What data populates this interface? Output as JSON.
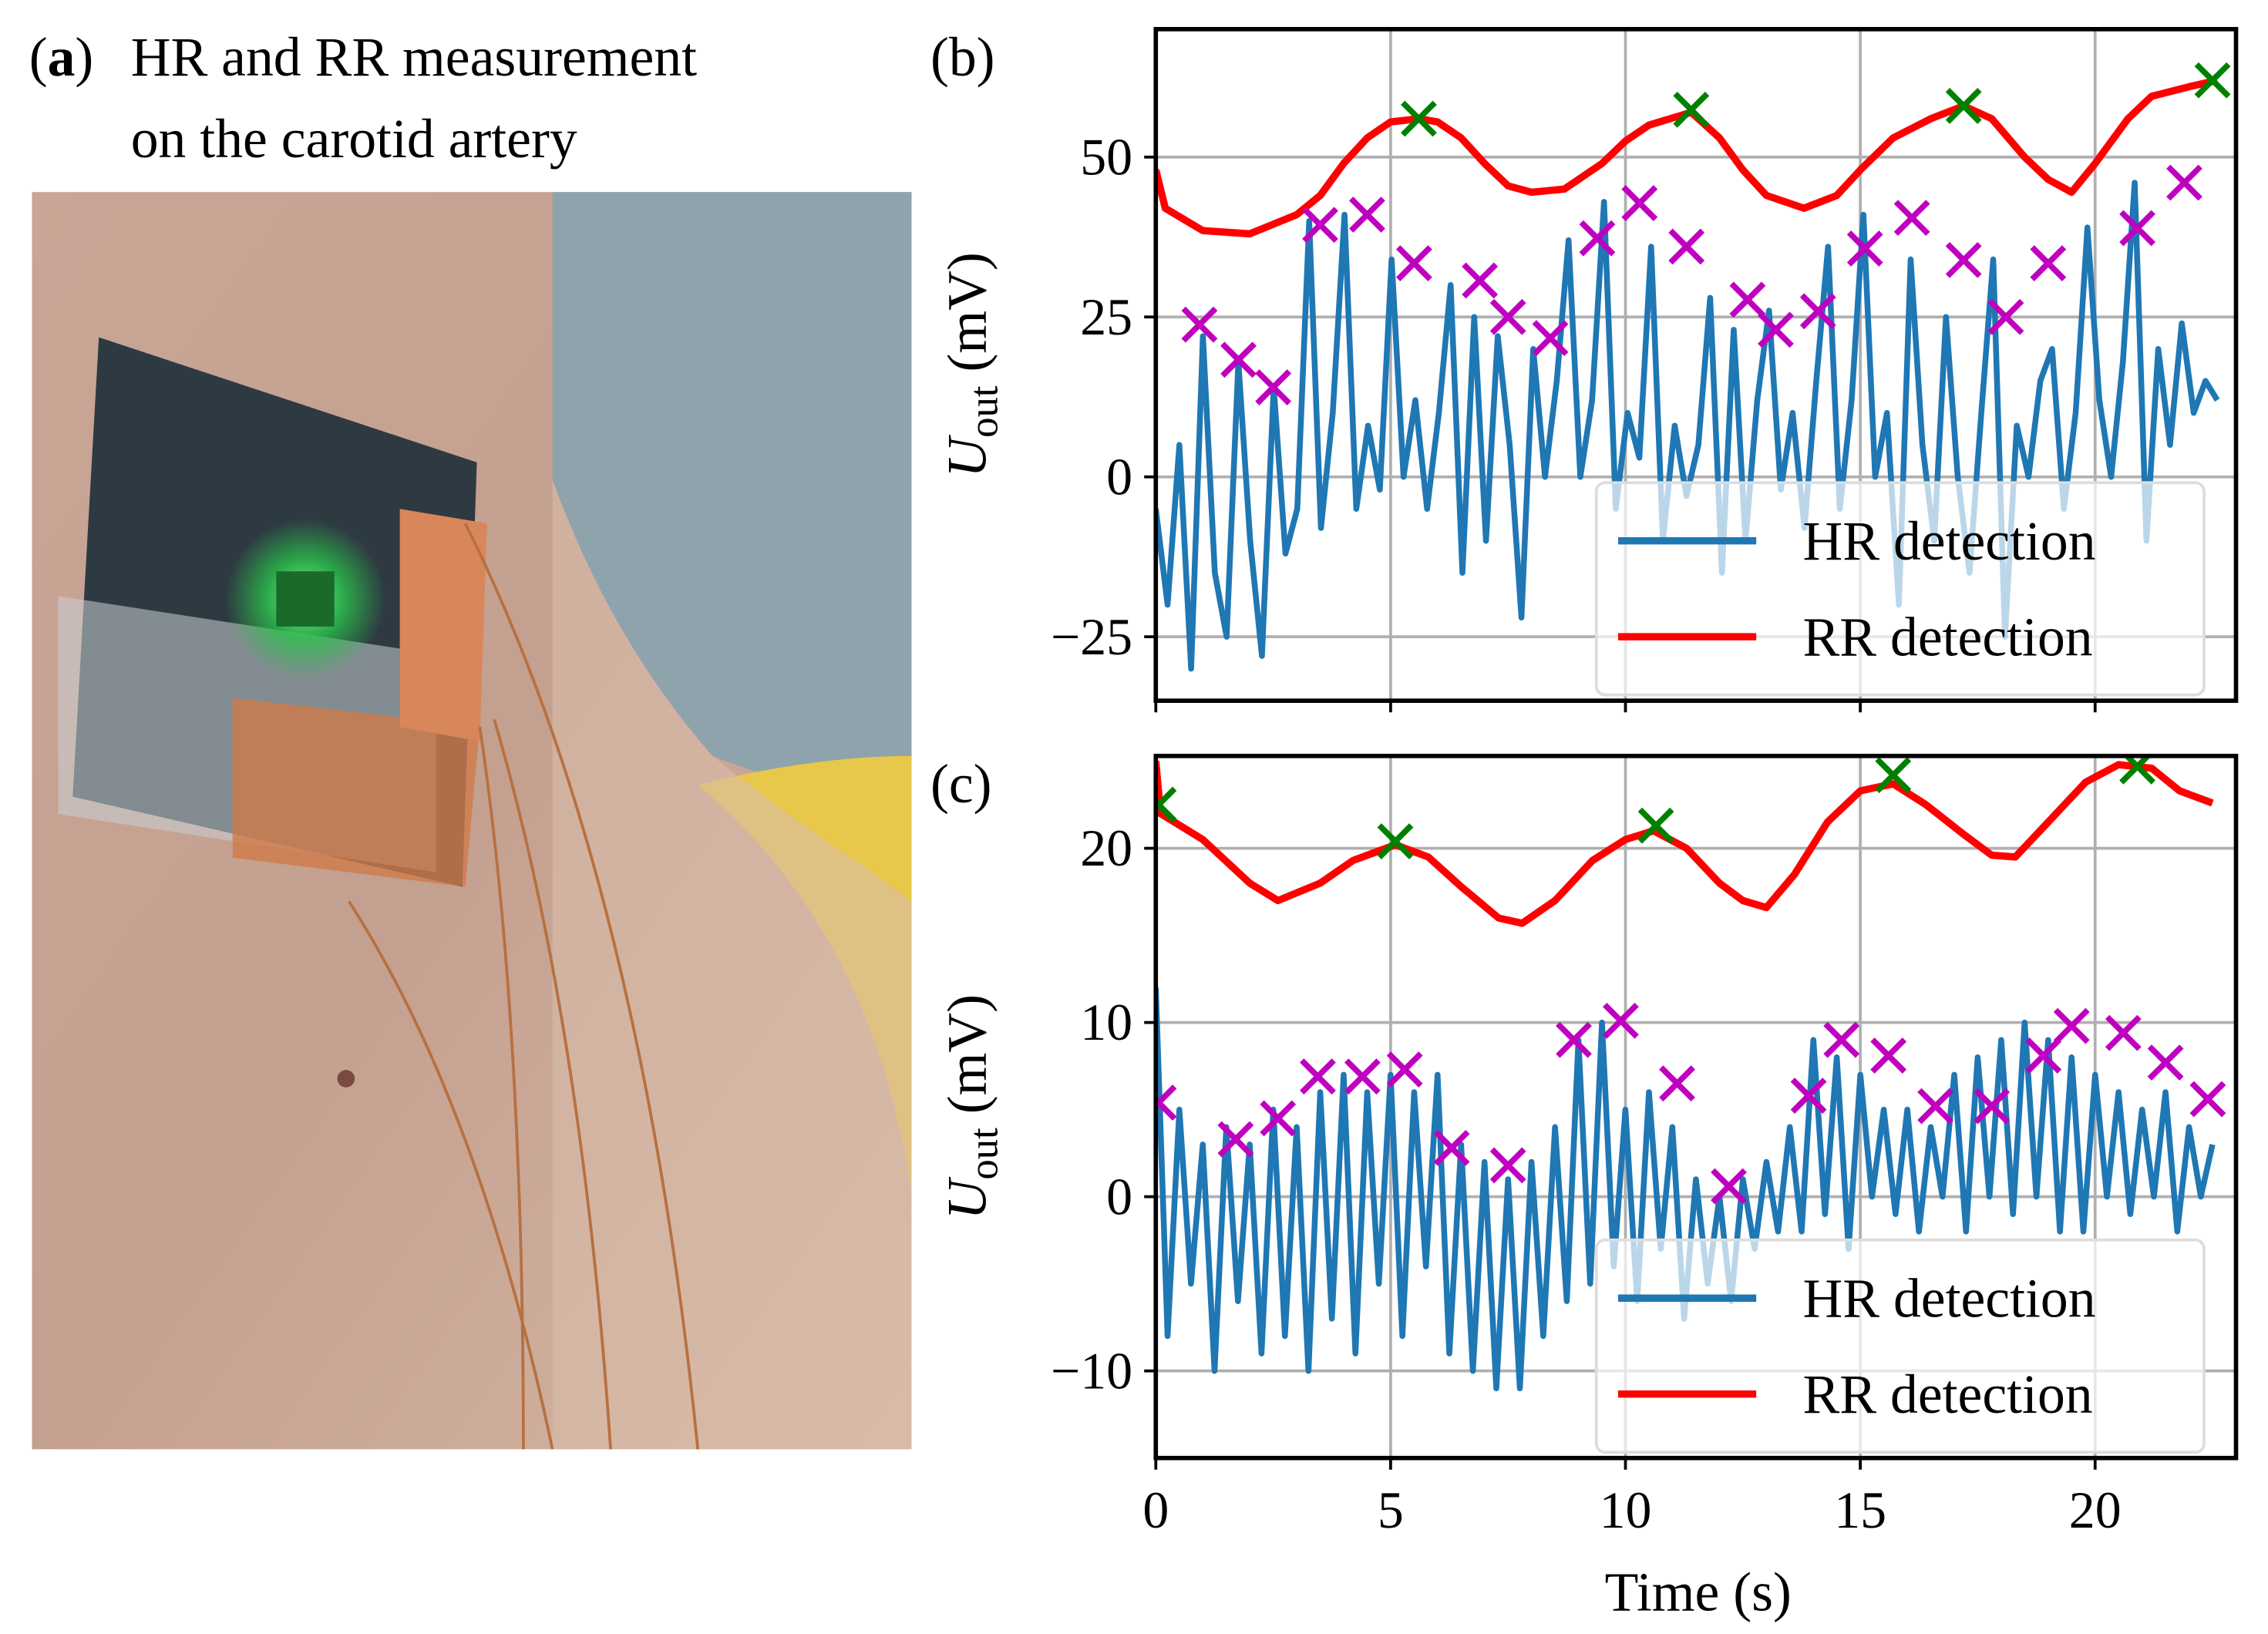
{
  "panel_a": {
    "label_letter": "a",
    "label_open": "(",
    "label_close": ")",
    "title_line1": "HR and RR measurement",
    "title_line2": "on the carotid artery"
  },
  "colors": {
    "hr": "#1f77b4",
    "rr": "#ff0000",
    "hr_peaks": "#bf00bf",
    "rr_peaks": "#008000",
    "grid": "#b0b0b0"
  },
  "shared_xlabel": "Time (s)",
  "chart_data": [
    {
      "panel": "(b)",
      "type": "line",
      "ylabel_symbol": "U",
      "ylabel_sub": "out",
      "ylabel_unit": " (mV)",
      "xlim": [
        0,
        23
      ],
      "ylim": [
        -35,
        70
      ],
      "xticks": [
        0,
        5,
        10,
        15,
        20
      ],
      "yticks": [
        -25,
        0,
        25,
        50
      ],
      "ytick_labels": [
        "−25",
        "0",
        "25",
        "50"
      ],
      "grid": true,
      "legend": {
        "placement": "lower-right",
        "entries": [
          "HR detection",
          "RR detection"
        ]
      },
      "hr_signal": [
        -5,
        -20,
        5,
        -30,
        22,
        -15,
        -25,
        18,
        -10,
        -28,
        14,
        -12,
        -5,
        40,
        -8,
        10,
        41,
        -5,
        8,
        -2,
        34,
        0,
        12,
        -5,
        10,
        30,
        -15,
        25,
        -10,
        22,
        5,
        -22,
        20,
        0,
        15,
        37,
        0,
        12,
        43,
        -5,
        10,
        3,
        36,
        -10,
        8,
        -3,
        5,
        28,
        -15,
        23,
        -10,
        12,
        26,
        -2,
        10,
        -8,
        15,
        36,
        -5,
        12,
        41,
        0,
        10,
        -20,
        34,
        5,
        -10,
        25,
        0,
        -15,
        10,
        34,
        -25,
        8,
        0,
        15,
        20,
        -5,
        10,
        39,
        12,
        0,
        18,
        46,
        -10,
        20,
        5,
        24,
        10,
        15,
        12
      ],
      "rr_signal": [
        [
          0,
          48
        ],
        [
          0.2,
          42
        ],
        [
          1,
          38.5
        ],
        [
          2,
          38
        ],
        [
          2.5,
          39.5
        ],
        [
          3,
          41
        ],
        [
          3.5,
          44
        ],
        [
          4,
          49
        ],
        [
          4.5,
          53
        ],
        [
          5,
          55.5
        ],
        [
          5.6,
          56
        ],
        [
          6,
          55.5
        ],
        [
          6.5,
          53
        ],
        [
          7,
          49
        ],
        [
          7.5,
          45.5
        ],
        [
          8,
          44.5
        ],
        [
          8.7,
          45
        ],
        [
          9.5,
          49
        ],
        [
          10,
          52.5
        ],
        [
          10.5,
          55
        ],
        [
          11.4,
          57
        ],
        [
          12,
          53
        ],
        [
          12.5,
          48
        ],
        [
          13,
          44
        ],
        [
          13.8,
          42
        ],
        [
          14.5,
          44
        ],
        [
          15,
          48
        ],
        [
          15.7,
          53
        ],
        [
          16.5,
          56
        ],
        [
          17.2,
          58
        ],
        [
          17.8,
          56
        ],
        [
          18.5,
          50
        ],
        [
          19,
          46.5
        ],
        [
          19.5,
          44.5
        ],
        [
          20,
          49
        ],
        [
          20.7,
          56
        ],
        [
          21.2,
          59.5
        ],
        [
          22,
          61
        ],
        [
          22.6,
          62
        ]
      ],
      "hr_peaks": [
        [
          0.93,
          23.8
        ],
        [
          1.76,
          18.3
        ],
        [
          2.5,
          14
        ],
        [
          3.5,
          39.4
        ],
        [
          4.5,
          41
        ],
        [
          5.5,
          33.4
        ],
        [
          6.9,
          30.7
        ],
        [
          7.5,
          25
        ],
        [
          8.4,
          21.7
        ],
        [
          9.4,
          37.3
        ],
        [
          10.3,
          42.8
        ],
        [
          11.3,
          36
        ],
        [
          12.6,
          27.7
        ],
        [
          13.2,
          23
        ],
        [
          14.1,
          25.9
        ],
        [
          15.1,
          35.7
        ],
        [
          16.1,
          40.5
        ],
        [
          17.2,
          33.9
        ],
        [
          18.1,
          25
        ],
        [
          19,
          33.4
        ],
        [
          20.9,
          38.9
        ],
        [
          21.9,
          46
        ]
      ],
      "rr_peaks": [
        [
          5.6,
          56
        ],
        [
          11.4,
          57.4
        ],
        [
          17.2,
          58
        ],
        [
          22.5,
          62
        ]
      ]
    },
    {
      "panel": "(c)",
      "type": "line",
      "ylabel_symbol": "U",
      "ylabel_sub": "out",
      "ylabel_unit": " (mV)",
      "xlim": [
        0,
        23
      ],
      "ylim": [
        -15,
        25.3
      ],
      "xticks": [
        0,
        5,
        10,
        15,
        20
      ],
      "xtick_labels": [
        "0",
        "5",
        "10",
        "15",
        "20"
      ],
      "yticks": [
        -10,
        0,
        10,
        20
      ],
      "ytick_labels": [
        "−10",
        "0",
        "10",
        "20"
      ],
      "grid": true,
      "legend": {
        "placement": "lower-right",
        "entries": [
          "HR detection",
          "RR detection"
        ]
      },
      "hr_signal": [
        12,
        -8,
        5,
        -5,
        3,
        -10,
        4,
        -6,
        3,
        -9,
        5,
        -8,
        4,
        -10,
        6,
        -7,
        7,
        -9,
        6,
        -5,
        7,
        -8,
        6,
        -4,
        7,
        -9,
        3,
        -10,
        2,
        -11,
        1,
        -11,
        2,
        -8,
        4,
        -6,
        9,
        -5,
        10,
        -4,
        5,
        -6,
        6,
        -3,
        4,
        -7,
        1,
        -5,
        0,
        -6,
        1,
        -3,
        2,
        -2,
        4,
        -2,
        9,
        -1,
        8,
        -3,
        7,
        0,
        5,
        -1,
        5,
        -2,
        4,
        0,
        7,
        -2,
        8,
        0,
        9,
        -1,
        10,
        0,
        9,
        -2,
        8,
        -2,
        7,
        0,
        6,
        -1,
        5,
        0,
        6,
        -2,
        4,
        0,
        3
      ],
      "rr_signal": [
        [
          0,
          25
        ],
        [
          0.1,
          22
        ],
        [
          1,
          20.5
        ],
        [
          2,
          18
        ],
        [
          2.6,
          17
        ],
        [
          3.5,
          18
        ],
        [
          4.2,
          19.3
        ],
        [
          5.1,
          20.2
        ],
        [
          5.8,
          19.5
        ],
        [
          6.5,
          17.8
        ],
        [
          7.3,
          16
        ],
        [
          7.8,
          15.7
        ],
        [
          8.5,
          17
        ],
        [
          9.3,
          19.3
        ],
        [
          10,
          20.5
        ],
        [
          10.6,
          21
        ],
        [
          11.3,
          20
        ],
        [
          12,
          18
        ],
        [
          12.5,
          17
        ],
        [
          13,
          16.6
        ],
        [
          13.6,
          18.5
        ],
        [
          14.3,
          21.5
        ],
        [
          15,
          23.3
        ],
        [
          15.7,
          23.7
        ],
        [
          16.4,
          22.5
        ],
        [
          17.2,
          20.8
        ],
        [
          17.8,
          19.6
        ],
        [
          18.3,
          19.5
        ],
        [
          19,
          21.5
        ],
        [
          19.8,
          23.8
        ],
        [
          20.5,
          24.8
        ],
        [
          21.2,
          24.6
        ],
        [
          21.8,
          23.3
        ],
        [
          22.5,
          22.6
        ]
      ],
      "hr_peaks": [
        [
          0.06,
          5.4
        ],
        [
          1.7,
          3.3
        ],
        [
          2.6,
          4.5
        ],
        [
          3.45,
          6.9
        ],
        [
          4.4,
          6.9
        ],
        [
          5.3,
          7.3
        ],
        [
          6.3,
          2.8
        ],
        [
          7.5,
          1.8
        ],
        [
          8.9,
          9
        ],
        [
          9.9,
          10.1
        ],
        [
          11.1,
          6.5
        ],
        [
          12.2,
          0.6
        ],
        [
          13.9,
          5.8
        ],
        [
          14.6,
          9
        ],
        [
          15.6,
          8.1
        ],
        [
          16.6,
          5.2
        ],
        [
          17.8,
          5.2
        ],
        [
          18.9,
          8.1
        ],
        [
          19.5,
          9.8
        ],
        [
          20.6,
          9.4
        ],
        [
          21.5,
          7.7
        ],
        [
          22.4,
          5.6
        ]
      ],
      "rr_peaks": [
        [
          0.06,
          22.5
        ],
        [
          5.1,
          20.4
        ],
        [
          10.65,
          21.3
        ],
        [
          15.7,
          24.2
        ],
        [
          20.9,
          24.7
        ]
      ]
    }
  ]
}
